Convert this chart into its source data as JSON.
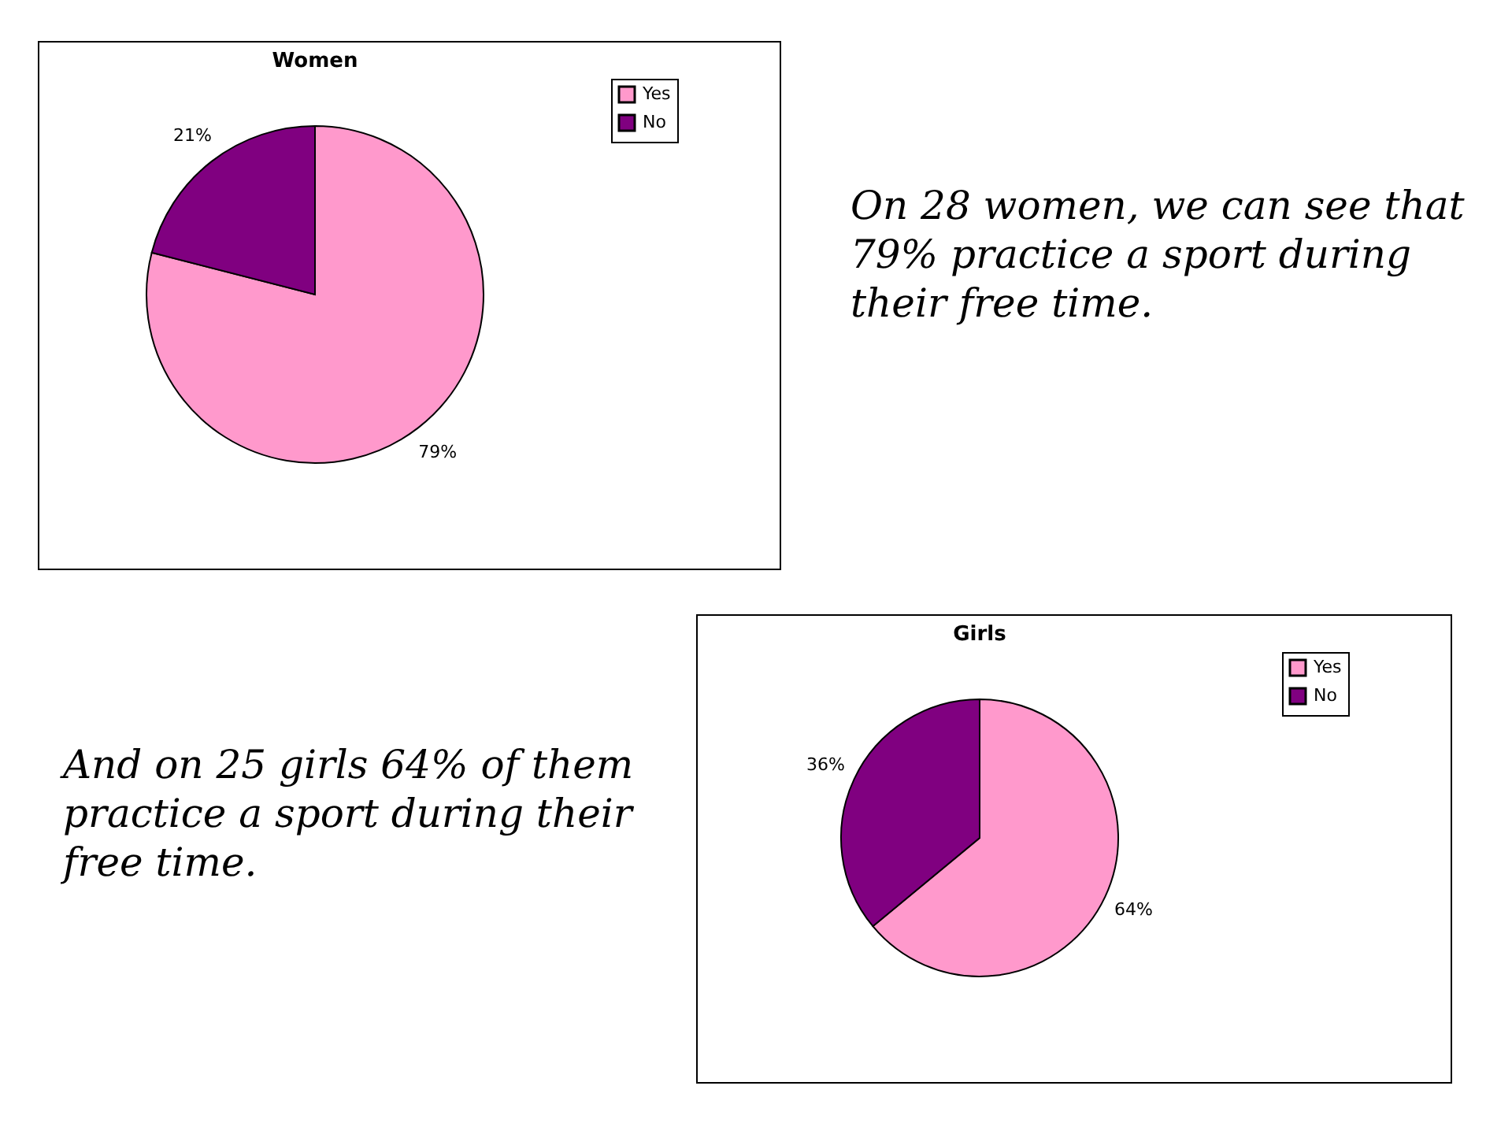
{
  "chart_data": [
    {
      "type": "pie",
      "title": "Women",
      "categories": [
        "Yes",
        "No"
      ],
      "values": [
        79,
        21
      ],
      "colors": [
        "#ff99cc",
        "#800080"
      ],
      "value_labels": [
        "79%",
        "21%"
      ],
      "legend": "right",
      "annotations": [
        "On 28 women, we can see that 79% practice a sport during their free time."
      ]
    },
    {
      "type": "pie",
      "title": "Girls",
      "categories": [
        "Yes",
        "No"
      ],
      "values": [
        64,
        36
      ],
      "colors": [
        "#ff99cc",
        "#800080"
      ],
      "value_labels": [
        "64%",
        "36%"
      ],
      "legend": "right",
      "annotations": [
        "And on 25 girls 64% of them practice a sport during their free time."
      ]
    }
  ]
}
